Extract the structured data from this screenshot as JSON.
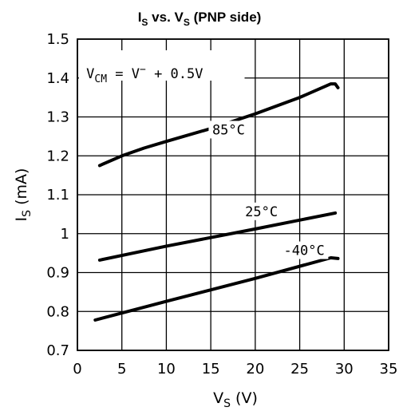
{
  "chart_data": {
    "type": "line",
    "title": {
      "main": "I",
      "main_sub": "S",
      "mid": " vs. V",
      "mid_sub": "S",
      "tail": " (PNP side)"
    },
    "xlabel": {
      "main": "V",
      "sub": "S",
      "unit": " (V)"
    },
    "ylabel": {
      "main": "I",
      "sub": "S",
      "unit": " (mA)"
    },
    "xlim": [
      0,
      35
    ],
    "ylim": [
      0.7,
      1.5
    ],
    "x_ticks": [
      0,
      5,
      10,
      15,
      20,
      25,
      30,
      35
    ],
    "y_ticks": [
      0.7,
      0.8,
      0.9,
      1.0,
      1.1,
      1.2,
      1.3,
      1.4,
      1.5
    ],
    "y_tick_labels": [
      "0.7",
      "0.8",
      "0.9",
      "1",
      "1.1",
      "1.2",
      "1.3",
      "1.4",
      "1.5"
    ],
    "grid": true,
    "annotation": {
      "prefix": "V",
      "prefix_sub": "CM",
      "middle": " = V",
      "middle_sup": "−",
      "suffix": " + 0.5V"
    },
    "series": [
      {
        "name": "85°C",
        "x": [
          2.5,
          5,
          7.5,
          10,
          15,
          20,
          25,
          28.5,
          29,
          29.3
        ],
        "y": [
          1.175,
          1.2,
          1.22,
          1.237,
          1.27,
          1.308,
          1.35,
          1.385,
          1.385,
          1.375
        ]
      },
      {
        "name": "25°C",
        "x": [
          2.5,
          10,
          20,
          29
        ],
        "y": [
          0.932,
          0.968,
          1.012,
          1.053
        ]
      },
      {
        "name": "-40°C",
        "x": [
          2,
          10,
          20,
          28.5,
          29.3
        ],
        "y": [
          0.778,
          0.826,
          0.885,
          0.938,
          0.936
        ]
      }
    ]
  }
}
